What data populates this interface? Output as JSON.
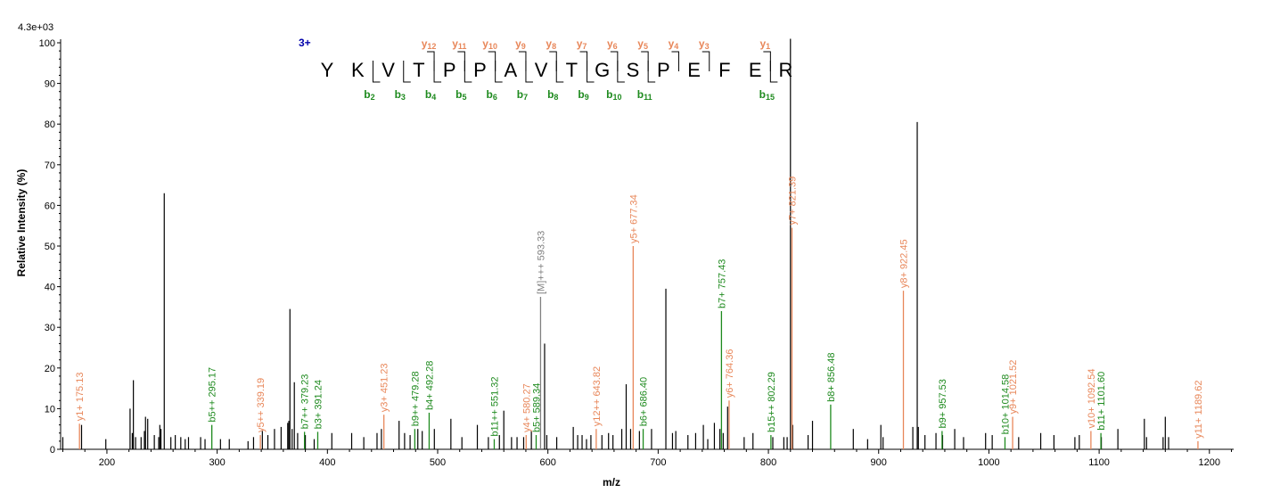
{
  "chart_data": {
    "type": "bar",
    "x_label": "m/z",
    "y_label": "Relative   Intensity (%)",
    "max_intensity_label": "4.3e+03",
    "xlim": [
      158,
      1222
    ],
    "ylim": [
      0,
      100
    ],
    "x_ticks": [
      200,
      300,
      400,
      500,
      600,
      700,
      800,
      900,
      1000,
      1100,
      1200
    ],
    "y_ticks": [
      0,
      10,
      20,
      30,
      40,
      50,
      60,
      70,
      80,
      90,
      100
    ],
    "colors": {
      "unassigned": "#000000",
      "y_ion": "#e8875a",
      "b_ion": "#1e8a1e",
      "precursor": "#808080",
      "charge": "#0000aa"
    },
    "peptide": {
      "charge": "3+",
      "sequence": [
        "Y",
        "K",
        "V",
        "T",
        "P",
        "P",
        "A",
        "V",
        "T",
        "G",
        "S",
        "P",
        "E",
        "F",
        "E",
        "R"
      ],
      "y_ions": [
        {
          "after": 3,
          "n": "12"
        },
        {
          "after": 4,
          "n": "11"
        },
        {
          "after": 5,
          "n": "10"
        },
        {
          "after": 6,
          "n": "9"
        },
        {
          "after": 7,
          "n": "8"
        },
        {
          "after": 8,
          "n": "7"
        },
        {
          "after": 9,
          "n": "6"
        },
        {
          "after": 10,
          "n": "5"
        },
        {
          "after": 11,
          "n": "4"
        },
        {
          "after": 12,
          "n": "3"
        },
        {
          "after": 14,
          "n": "1"
        }
      ],
      "b_ions": [
        {
          "after": 1,
          "n": "2"
        },
        {
          "after": 2,
          "n": "3"
        },
        {
          "after": 3,
          "n": "4"
        },
        {
          "after": 4,
          "n": "5"
        },
        {
          "after": 5,
          "n": "6"
        },
        {
          "after": 6,
          "n": "7"
        },
        {
          "after": 7,
          "n": "8"
        },
        {
          "after": 8,
          "n": "9"
        },
        {
          "after": 9,
          "n": "10"
        },
        {
          "after": 10,
          "n": "11"
        },
        {
          "after": 14,
          "n": "15"
        }
      ]
    },
    "labeled_peaks": [
      {
        "mz": 175.13,
        "intensity": 6.3,
        "type": "y",
        "label": "y1+ 175.13"
      },
      {
        "mz": 295.17,
        "intensity": 6.0,
        "type": "b",
        "label": "b5++ 295.17"
      },
      {
        "mz": 339.19,
        "intensity": 3.5,
        "type": "y",
        "label": "y5++ 339.19"
      },
      {
        "mz": 379.23,
        "intensity": 4.3,
        "type": "b",
        "label": "b7++ 379.23"
      },
      {
        "mz": 391.24,
        "intensity": 4.3,
        "type": "b",
        "label": "b3+ 391.24"
      },
      {
        "mz": 451.23,
        "intensity": 8.5,
        "type": "y",
        "label": "y3+ 451.23"
      },
      {
        "mz": 479.28,
        "intensity": 5.0,
        "type": "b",
        "label": "b9++ 479.28"
      },
      {
        "mz": 492.28,
        "intensity": 9.0,
        "type": "b",
        "label": "b4+ 492.28"
      },
      {
        "mz": 551.32,
        "intensity": 2.5,
        "type": "b",
        "label": "b11++ 551.32"
      },
      {
        "mz": 580.27,
        "intensity": 3.5,
        "type": "y",
        "label": "y4+ 580.27"
      },
      {
        "mz": 589.34,
        "intensity": 3.5,
        "type": "b",
        "label": "b5+ 589.34"
      },
      {
        "mz": 593.33,
        "intensity": 37.5,
        "type": "precursor",
        "label": "[M]+++ 593.33"
      },
      {
        "mz": 643.82,
        "intensity": 5.0,
        "type": "y",
        "label": "y12++ 643.82"
      },
      {
        "mz": 677.34,
        "intensity": 50.0,
        "type": "y",
        "label": "y5+ 677.34"
      },
      {
        "mz": 686.4,
        "intensity": 5.0,
        "type": "b",
        "label": "b6+ 686.40"
      },
      {
        "mz": 757.43,
        "intensity": 34.0,
        "type": "b",
        "label": "b7+ 757.43"
      },
      {
        "mz": 764.36,
        "intensity": 12.0,
        "type": "y",
        "label": "y6+ 764.36"
      },
      {
        "mz": 802.29,
        "intensity": 3.5,
        "type": "b",
        "label": "b15++ 802.29"
      },
      {
        "mz": 821.39,
        "intensity": 54.5,
        "type": "y",
        "label": "y7+ 821.39"
      },
      {
        "mz": 856.48,
        "intensity": 11.0,
        "type": "b",
        "label": "b8+ 856.48"
      },
      {
        "mz": 922.45,
        "intensity": 39.0,
        "type": "y",
        "label": "y8+ 922.45"
      },
      {
        "mz": 957.53,
        "intensity": 4.5,
        "type": "b",
        "label": "b9+ 957.53"
      },
      {
        "mz": 1014.58,
        "intensity": 3.0,
        "type": "b",
        "label": "b10+ 1014.58"
      },
      {
        "mz": 1021.52,
        "intensity": 8.0,
        "type": "y",
        "label": "y9+ 1021.52"
      },
      {
        "mz": 1092.54,
        "intensity": 4.5,
        "type": "y",
        "label": "v10+ 1092.54"
      },
      {
        "mz": 1101.6,
        "intensity": 4.0,
        "type": "b",
        "label": "b11+ 1101.60"
      },
      {
        "mz": 1189.62,
        "intensity": 2.0,
        "type": "y",
        "label": "y11+ 1189.62"
      }
    ],
    "unlabeled_peaks": [
      [
        160,
        3
      ],
      [
        177,
        6
      ],
      [
        199,
        2.5
      ],
      [
        221,
        10
      ],
      [
        223,
        4
      ],
      [
        224,
        17
      ],
      [
        226,
        3
      ],
      [
        231,
        3
      ],
      [
        234,
        4.5
      ],
      [
        235,
        8
      ],
      [
        237,
        7.5
      ],
      [
        243,
        3.5
      ],
      [
        247,
        3
      ],
      [
        248,
        6
      ],
      [
        249,
        5
      ],
      [
        252,
        63
      ],
      [
        258,
        3
      ],
      [
        262,
        3.5
      ],
      [
        267,
        3
      ],
      [
        271,
        2.5
      ],
      [
        274,
        3
      ],
      [
        285,
        3
      ],
      [
        289,
        2.5
      ],
      [
        303,
        2.5
      ],
      [
        311,
        2.5
      ],
      [
        328,
        2
      ],
      [
        333,
        3
      ],
      [
        341,
        4.5
      ],
      [
        346,
        3.5
      ],
      [
        352,
        5
      ],
      [
        358,
        5.5
      ],
      [
        364,
        6.5
      ],
      [
        365,
        7
      ],
      [
        366,
        34.5
      ],
      [
        368,
        5
      ],
      [
        370,
        16.5
      ],
      [
        373,
        4
      ],
      [
        380,
        3.5
      ],
      [
        388,
        2.5
      ],
      [
        404,
        4
      ],
      [
        422,
        4
      ],
      [
        433,
        3
      ],
      [
        445,
        4
      ],
      [
        449,
        5
      ],
      [
        465,
        7
      ],
      [
        470,
        4
      ],
      [
        475,
        3.5
      ],
      [
        482,
        5
      ],
      [
        486,
        4.5
      ],
      [
        497,
        5
      ],
      [
        512,
        7.5
      ],
      [
        522,
        3
      ],
      [
        536,
        6
      ],
      [
        546,
        3
      ],
      [
        556,
        3.5
      ],
      [
        560,
        9.5
      ],
      [
        567,
        3
      ],
      [
        572,
        3
      ],
      [
        578,
        3
      ],
      [
        585,
        4.5
      ],
      [
        597,
        26
      ],
      [
        599,
        3.5
      ],
      [
        608,
        3
      ],
      [
        623,
        5.5
      ],
      [
        627,
        3.5
      ],
      [
        631,
        3.5
      ],
      [
        635,
        2.5
      ],
      [
        639,
        3.5
      ],
      [
        649,
        3.5
      ],
      [
        655,
        4
      ],
      [
        659,
        3.5
      ],
      [
        667,
        5
      ],
      [
        671,
        16
      ],
      [
        675,
        5
      ],
      [
        683,
        4.5
      ],
      [
        694,
        5
      ],
      [
        707,
        39.5
      ],
      [
        713,
        4
      ],
      [
        716,
        4.5
      ],
      [
        727,
        3.5
      ],
      [
        734,
        4
      ],
      [
        741,
        6
      ],
      [
        745,
        2.5
      ],
      [
        751,
        6.5
      ],
      [
        756,
        5
      ],
      [
        759,
        4
      ],
      [
        763,
        10.5
      ],
      [
        778,
        3
      ],
      [
        786,
        4
      ],
      [
        804,
        3
      ],
      [
        814,
        3
      ],
      [
        817,
        3
      ],
      [
        820,
        102
      ],
      [
        822,
        6
      ],
      [
        836,
        3.5
      ],
      [
        840,
        7
      ],
      [
        877,
        5
      ],
      [
        890,
        2.5
      ],
      [
        902,
        6
      ],
      [
        904,
        3
      ],
      [
        931,
        5.5
      ],
      [
        935,
        80.5
      ],
      [
        936,
        5.5
      ],
      [
        942,
        3.5
      ],
      [
        952,
        4
      ],
      [
        958,
        3.5
      ],
      [
        969,
        5
      ],
      [
        977,
        3
      ],
      [
        997,
        4
      ],
      [
        1003,
        3.5
      ],
      [
        1027,
        3
      ],
      [
        1047,
        4
      ],
      [
        1059,
        3.5
      ],
      [
        1078,
        3
      ],
      [
        1082,
        3.5
      ],
      [
        1102,
        3
      ],
      [
        1117,
        5
      ],
      [
        1141,
        7.5
      ],
      [
        1143,
        3
      ],
      [
        1158,
        3
      ],
      [
        1160,
        8
      ],
      [
        1163,
        3
      ]
    ]
  }
}
